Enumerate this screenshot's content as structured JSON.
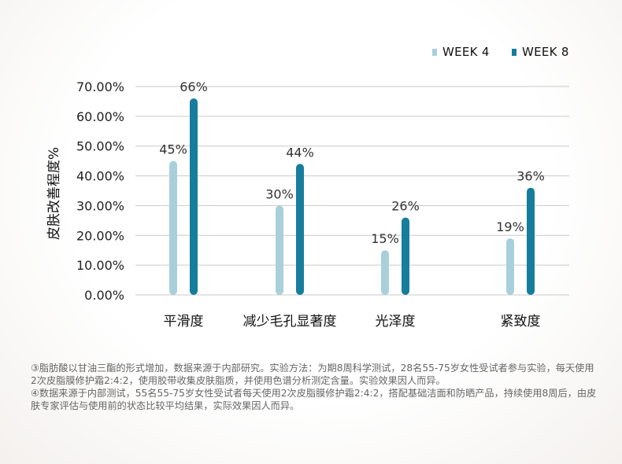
{
  "chart_data": {
    "type": "bar",
    "ylabel": "皮肤改善程度%",
    "ylim": [
      0,
      70
    ],
    "yticks": [
      "0.00%",
      "10.00%",
      "20.00%",
      "30.00%",
      "40.00%",
      "50.00%",
      "60.00%",
      "70.00%"
    ],
    "categories": [
      "平滑度",
      "减少毛孔显著度",
      "光泽度",
      "紧致度"
    ],
    "series": [
      {
        "name": "WEEK 4",
        "color": "#a9d0da",
        "values": [
          45,
          30,
          15,
          19
        ],
        "labels": [
          "45%",
          "30%",
          "15%",
          "19%"
        ]
      },
      {
        "name": "WEEK 8",
        "color": "#167e9c",
        "values": [
          66,
          44,
          26,
          36
        ],
        "labels": [
          "66%",
          "44%",
          "26%",
          "36%"
        ]
      }
    ],
    "legend": "top-right",
    "grid": true
  },
  "footnotes": [
    "③脂肪酸以甘油三酯的形式增加，数据来源于内部研究。实验方法：为期8周科学测试，28名55-75岁女性受试者参与实验，每天使用2次皮脂膜修护霜2:4:2，使用胶带收集皮肤脂质，并使用色谱分析测定含量。实验效果因人而异。",
    "④数据来源于内部测试，55名55-75岁女性受试者每天使用2次皮脂膜修护霜2:4:2，搭配基础洁面和防晒产品，持续使用8周后，由皮肤专家评估与使用前的状态比较平均结果，实际效果因人而异。"
  ]
}
